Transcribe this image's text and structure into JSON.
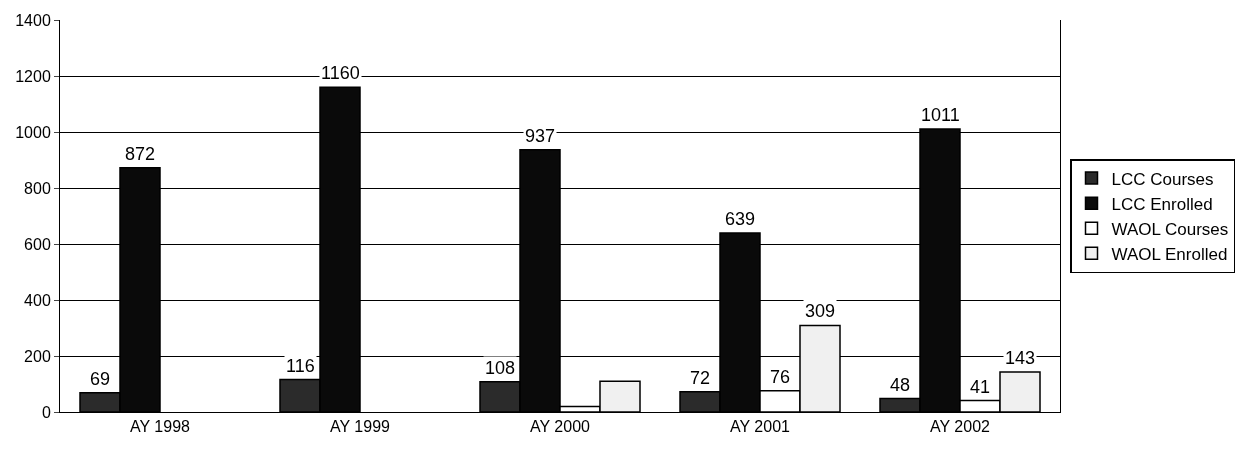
{
  "chart_data": {
    "type": "bar",
    "categories": [
      "AY 1998",
      "AY 1999",
      "AY 2000",
      "AY 2001",
      "AY 2002"
    ],
    "series": [
      {
        "name": "LCC Courses",
        "color": "#2b2b2b",
        "values": [
          69,
          116,
          108,
          72,
          48
        ],
        "value_labels": [
          "69",
          "116",
          "108",
          "72",
          "48"
        ]
      },
      {
        "name": "LCC Enrolled",
        "color": "#0a0a0a",
        "values": [
          872,
          1160,
          937,
          639,
          1011
        ],
        "value_labels": [
          "872",
          "1160",
          "937",
          "639",
          "1011"
        ]
      },
      {
        "name": "WAOL Courses",
        "color": "#ffffff",
        "values": [
          null,
          null,
          20,
          76,
          41
        ],
        "value_labels": [
          null,
          null,
          null,
          "76",
          "41"
        ]
      },
      {
        "name": "WAOL Enrolled",
        "color": "#f0f0f0",
        "values": [
          null,
          null,
          110,
          309,
          143
        ],
        "value_labels": [
          null,
          null,
          null,
          "309",
          "143"
        ]
      }
    ],
    "ylim": [
      0,
      1400
    ],
    "yticks": [
      0,
      200,
      400,
      600,
      800,
      1000,
      1200,
      1400
    ],
    "grid": "y",
    "legend": "right"
  }
}
